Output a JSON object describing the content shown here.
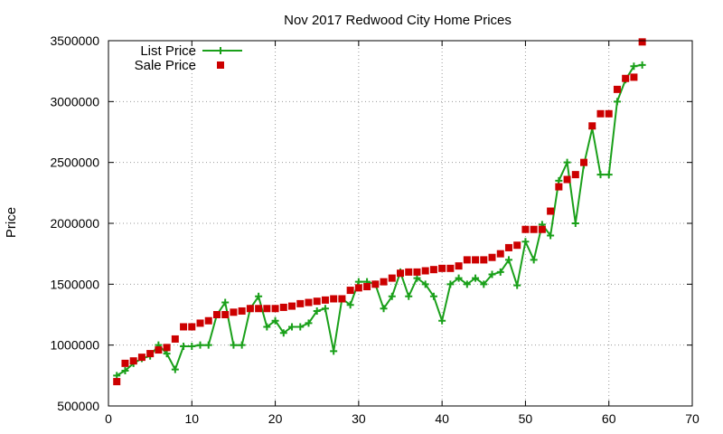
{
  "chart_data": {
    "type": "line",
    "title": "Nov 2017 Redwood City Home Prices",
    "xlabel": "",
    "ylabel": "Price",
    "xlim": [
      0,
      70
    ],
    "ylim": [
      500000,
      3500000
    ],
    "xticks": [
      0,
      10,
      20,
      30,
      40,
      50,
      60,
      70
    ],
    "yticks": [
      500000,
      1000000,
      1500000,
      2000000,
      2500000,
      3000000,
      3500000
    ],
    "grid": true,
    "legend_position": "top-left",
    "series": [
      {
        "name": "List Price",
        "style": "line-with-plus-markers",
        "color": "#1aa01a",
        "x": [
          1,
          2,
          3,
          4,
          5,
          6,
          7,
          8,
          9,
          10,
          11,
          12,
          13,
          14,
          15,
          16,
          17,
          18,
          19,
          20,
          21,
          22,
          23,
          24,
          25,
          26,
          27,
          28,
          29,
          30,
          31,
          32,
          33,
          34,
          35,
          36,
          37,
          38,
          39,
          40,
          41,
          42,
          43,
          44,
          45,
          46,
          47,
          48,
          49,
          50,
          51,
          52,
          53,
          54,
          55,
          56,
          57,
          58,
          59,
          60,
          61,
          62,
          63,
          64
        ],
        "y": [
          750000,
          790000,
          850000,
          890000,
          910000,
          1000000,
          930000,
          800000,
          990000,
          990000,
          1000000,
          1000000,
          1250000,
          1350000,
          1000000,
          1000000,
          1300000,
          1400000,
          1150000,
          1200000,
          1100000,
          1150000,
          1150000,
          1180000,
          1280000,
          1300000,
          950000,
          1380000,
          1330000,
          1520000,
          1520000,
          1500000,
          1300000,
          1400000,
          1600000,
          1400000,
          1550000,
          1500000,
          1400000,
          1200000,
          1500000,
          1550000,
          1500000,
          1550000,
          1500000,
          1580000,
          1600000,
          1700000,
          1490000,
          1850000,
          1700000,
          1990000,
          1900000,
          2350000,
          2500000,
          2000000,
          2480000,
          2780000,
          2400000,
          2400000,
          3000000,
          3180000,
          3290000,
          3300000
        ]
      },
      {
        "name": "Sale Price",
        "style": "square-markers",
        "color": "#cc0000",
        "x": [
          1,
          2,
          3,
          4,
          5,
          6,
          7,
          8,
          9,
          10,
          11,
          12,
          13,
          14,
          15,
          16,
          17,
          18,
          19,
          20,
          21,
          22,
          23,
          24,
          25,
          26,
          27,
          28,
          29,
          30,
          31,
          32,
          33,
          34,
          35,
          36,
          37,
          38,
          39,
          40,
          41,
          42,
          43,
          44,
          45,
          46,
          47,
          48,
          49,
          50,
          51,
          52,
          53,
          54,
          55,
          56,
          57,
          58,
          59,
          60,
          61,
          62,
          63,
          64
        ],
        "y": [
          700000,
          850000,
          870000,
          900000,
          930000,
          960000,
          980000,
          1050000,
          1150000,
          1150000,
          1180000,
          1200000,
          1250000,
          1250000,
          1270000,
          1280000,
          1300000,
          1300000,
          1300000,
          1300000,
          1310000,
          1320000,
          1340000,
          1350000,
          1360000,
          1370000,
          1380000,
          1380000,
          1450000,
          1470000,
          1480000,
          1500000,
          1520000,
          1550000,
          1590000,
          1600000,
          1600000,
          1610000,
          1620000,
          1630000,
          1630000,
          1650000,
          1700000,
          1700000,
          1700000,
          1720000,
          1750000,
          1800000,
          1820000,
          1950000,
          1950000,
          1950000,
          2100000,
          2300000,
          2360000,
          2400000,
          2500000,
          2800000,
          2900000,
          2900000,
          3100000,
          3190000,
          3200000,
          3490000
        ]
      }
    ]
  }
}
